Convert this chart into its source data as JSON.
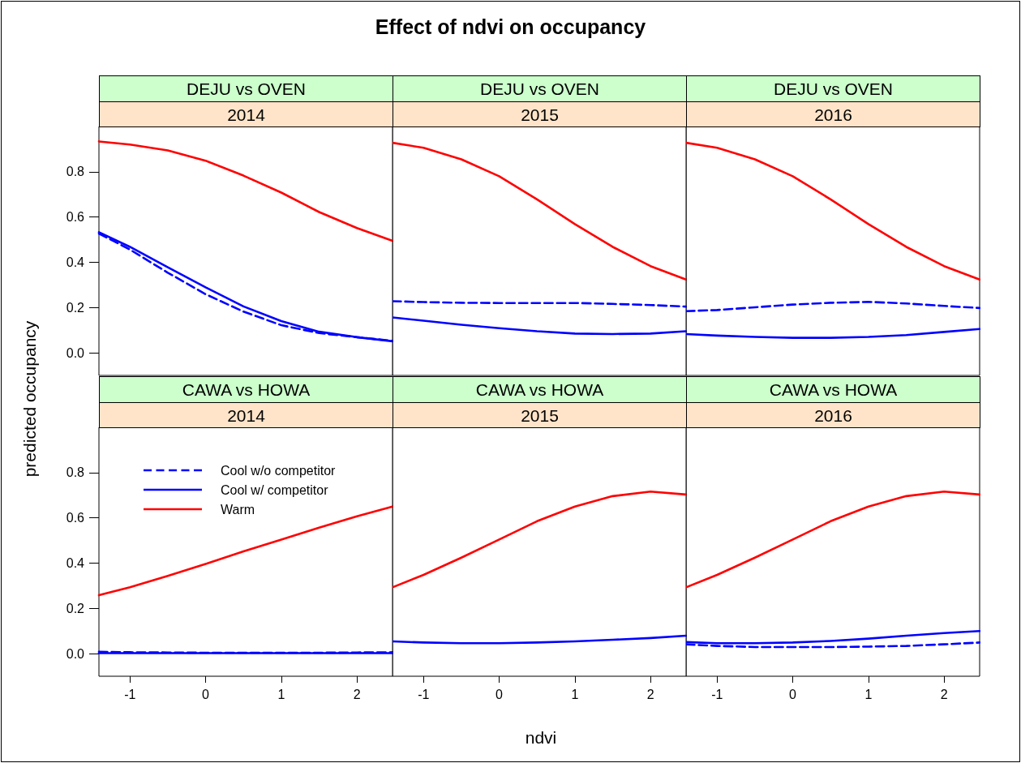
{
  "chart_data": [
    {
      "type": "line",
      "title": "DEJU vs OVEN",
      "subtitle": "2014",
      "ylabel": "predicted occupancy",
      "annotations": [
        "Effect of ndvi on occupancy"
      ],
      "xlim": [
        -1.41,
        2.47
      ],
      "ylim": [
        -0.1,
        1.0
      ],
      "yticks": [
        {
          "value": 0,
          "label": "0.0"
        },
        {
          "value": 0.2,
          "label": "0.2"
        },
        {
          "value": 0.4,
          "label": "0.4"
        },
        {
          "value": 0.6,
          "label": "0.6"
        },
        {
          "value": 0.8,
          "label": "0.8"
        }
      ],
      "tick_labels": "y",
      "marker": "none",
      "grid": false,
      "x": [
        -1.41,
        -1,
        -0.5,
        0,
        0.5,
        1,
        1.5,
        2,
        2.47
      ],
      "series": [
        {
          "color": "#0000ff",
          "line_style": "dashed",
          "values": [
            0.527,
            0.456,
            0.354,
            0.259,
            0.182,
            0.122,
            0.087,
            0.069,
            0.053
          ]
        },
        {
          "color": "#0000ff",
          "line_style": "solid",
          "values": [
            0.533,
            0.468,
            0.378,
            0.289,
            0.205,
            0.14,
            0.093,
            0.069,
            0.051
          ]
        },
        {
          "color": "#ff0000",
          "line_style": "solid",
          "values": [
            0.934,
            0.92,
            0.894,
            0.849,
            0.783,
            0.708,
            0.622,
            0.551,
            0.495
          ]
        }
      ]
    },
    {
      "type": "line",
      "title": "DEJU vs OVEN",
      "subtitle": "2015",
      "xlim": [
        -1.41,
        2.47
      ],
      "ylim": [
        -0.1,
        1.0
      ],
      "tick_labels": false,
      "marker": "none",
      "grid": false,
      "x": [
        -1.41,
        -1,
        -0.5,
        0,
        0.5,
        1,
        1.5,
        2,
        2.47
      ],
      "series": [
        {
          "color": "#0000ff",
          "line_style": "dashed",
          "values": [
            0.228,
            0.224,
            0.221,
            0.22,
            0.22,
            0.22,
            0.216,
            0.211,
            0.204
          ]
        },
        {
          "color": "#0000ff",
          "line_style": "solid",
          "values": [
            0.156,
            0.142,
            0.124,
            0.109,
            0.095,
            0.085,
            0.083,
            0.085,
            0.095
          ]
        },
        {
          "color": "#ff0000",
          "line_style": "solid",
          "values": [
            0.928,
            0.906,
            0.855,
            0.78,
            0.678,
            0.569,
            0.468,
            0.383,
            0.324
          ]
        }
      ]
    },
    {
      "type": "line",
      "title": "DEJU vs OVEN",
      "subtitle": "2016",
      "xlim": [
        -1.41,
        2.47
      ],
      "ylim": [
        -0.1,
        1.0
      ],
      "tick_labels": false,
      "marker": "none",
      "grid": false,
      "x": [
        -1.41,
        -1,
        -0.5,
        0,
        0.5,
        1,
        1.5,
        2,
        2.47
      ],
      "series": [
        {
          "color": "#0000ff",
          "line_style": "dashed",
          "values": [
            0.184,
            0.189,
            0.201,
            0.213,
            0.221,
            0.225,
            0.218,
            0.207,
            0.198
          ]
        },
        {
          "color": "#0000ff",
          "line_style": "solid",
          "values": [
            0.083,
            0.076,
            0.07,
            0.066,
            0.066,
            0.07,
            0.078,
            0.092,
            0.105
          ]
        },
        {
          "color": "#ff0000",
          "line_style": "solid",
          "values": [
            0.928,
            0.906,
            0.855,
            0.78,
            0.678,
            0.569,
            0.468,
            0.383,
            0.324
          ]
        }
      ]
    },
    {
      "type": "line",
      "title": "CAWA vs HOWA",
      "subtitle": "2014",
      "xlim": [
        -1.41,
        2.47
      ],
      "xticks": [
        -1,
        0,
        1,
        2
      ],
      "ylim": [
        -0.1,
        1.0
      ],
      "yticks": [
        {
          "value": 0,
          "label": "0.0"
        },
        {
          "value": 0.2,
          "label": "0.2"
        },
        {
          "value": 0.4,
          "label": "0.4"
        },
        {
          "value": 0.6,
          "label": "0.6"
        },
        {
          "value": 0.8,
          "label": "0.8"
        }
      ],
      "marker": "none",
      "grid": false,
      "legend": "top left",
      "x": [
        -1.41,
        -1,
        -0.5,
        0,
        0.5,
        1,
        1.5,
        2,
        2.47
      ],
      "series": [
        {
          "name": "Cool w/o competitor",
          "color": "#0000ff",
          "line_style": "dashed",
          "values": [
            0.008,
            0.006,
            0.005,
            0.004,
            0.004,
            0.004,
            0.004,
            0.005,
            0.006
          ]
        },
        {
          "name": "Cool w/ competitor",
          "color": "#0000ff",
          "line_style": "solid",
          "values": [
            0.002,
            0.002,
            0.002,
            0.002,
            0.002,
            0.002,
            0.002,
            0.002,
            0.002
          ]
        },
        {
          "name": "Warm",
          "color": "#ff0000",
          "line_style": "solid",
          "values": [
            0.258,
            0.293,
            0.343,
            0.396,
            0.452,
            0.504,
            0.557,
            0.607,
            0.65
          ]
        }
      ]
    },
    {
      "type": "line",
      "title": "CAWA vs HOWA",
      "subtitle": "2015",
      "xlabel": "ndvi",
      "xlim": [
        -1.41,
        2.47
      ],
      "xticks": [
        -1,
        0,
        1,
        2
      ],
      "ylim": [
        -0.1,
        1.0
      ],
      "tick_labels": "x",
      "marker": "none",
      "grid": false,
      "x": [
        -1.41,
        -1,
        -0.5,
        0,
        0.5,
        1,
        1.5,
        2,
        2.47
      ],
      "series": [
        {
          "color": "#0000ff",
          "line_style": "solid",
          "values": [
            0.054,
            0.049,
            0.046,
            0.046,
            0.049,
            0.054,
            0.061,
            0.069,
            0.079
          ]
        },
        {
          "color": "#ff0000",
          "line_style": "solid",
          "values": [
            0.293,
            0.348,
            0.424,
            0.504,
            0.585,
            0.65,
            0.696,
            0.716,
            0.703
          ]
        }
      ]
    },
    {
      "type": "line",
      "title": "CAWA vs HOWA",
      "subtitle": "2016",
      "xlim": [
        -1.41,
        2.47
      ],
      "xticks": [
        -1,
        0,
        1,
        2
      ],
      "ylim": [
        -0.1,
        1.0
      ],
      "tick_labels": "x",
      "marker": "none",
      "grid": false,
      "x": [
        -1.41,
        -1,
        -0.5,
        0,
        0.5,
        1,
        1.5,
        2,
        2.47
      ],
      "series": [
        {
          "color": "#0000ff",
          "line_style": "dashed",
          "values": [
            0.041,
            0.034,
            0.029,
            0.029,
            0.029,
            0.031,
            0.034,
            0.041,
            0.049
          ]
        },
        {
          "color": "#0000ff",
          "line_style": "solid",
          "values": [
            0.051,
            0.046,
            0.046,
            0.049,
            0.056,
            0.066,
            0.079,
            0.091,
            0.1
          ]
        },
        {
          "color": "#ff0000",
          "line_style": "solid",
          "values": [
            0.293,
            0.348,
            0.424,
            0.504,
            0.585,
            0.65,
            0.696,
            0.716,
            0.703
          ]
        }
      ]
    }
  ]
}
